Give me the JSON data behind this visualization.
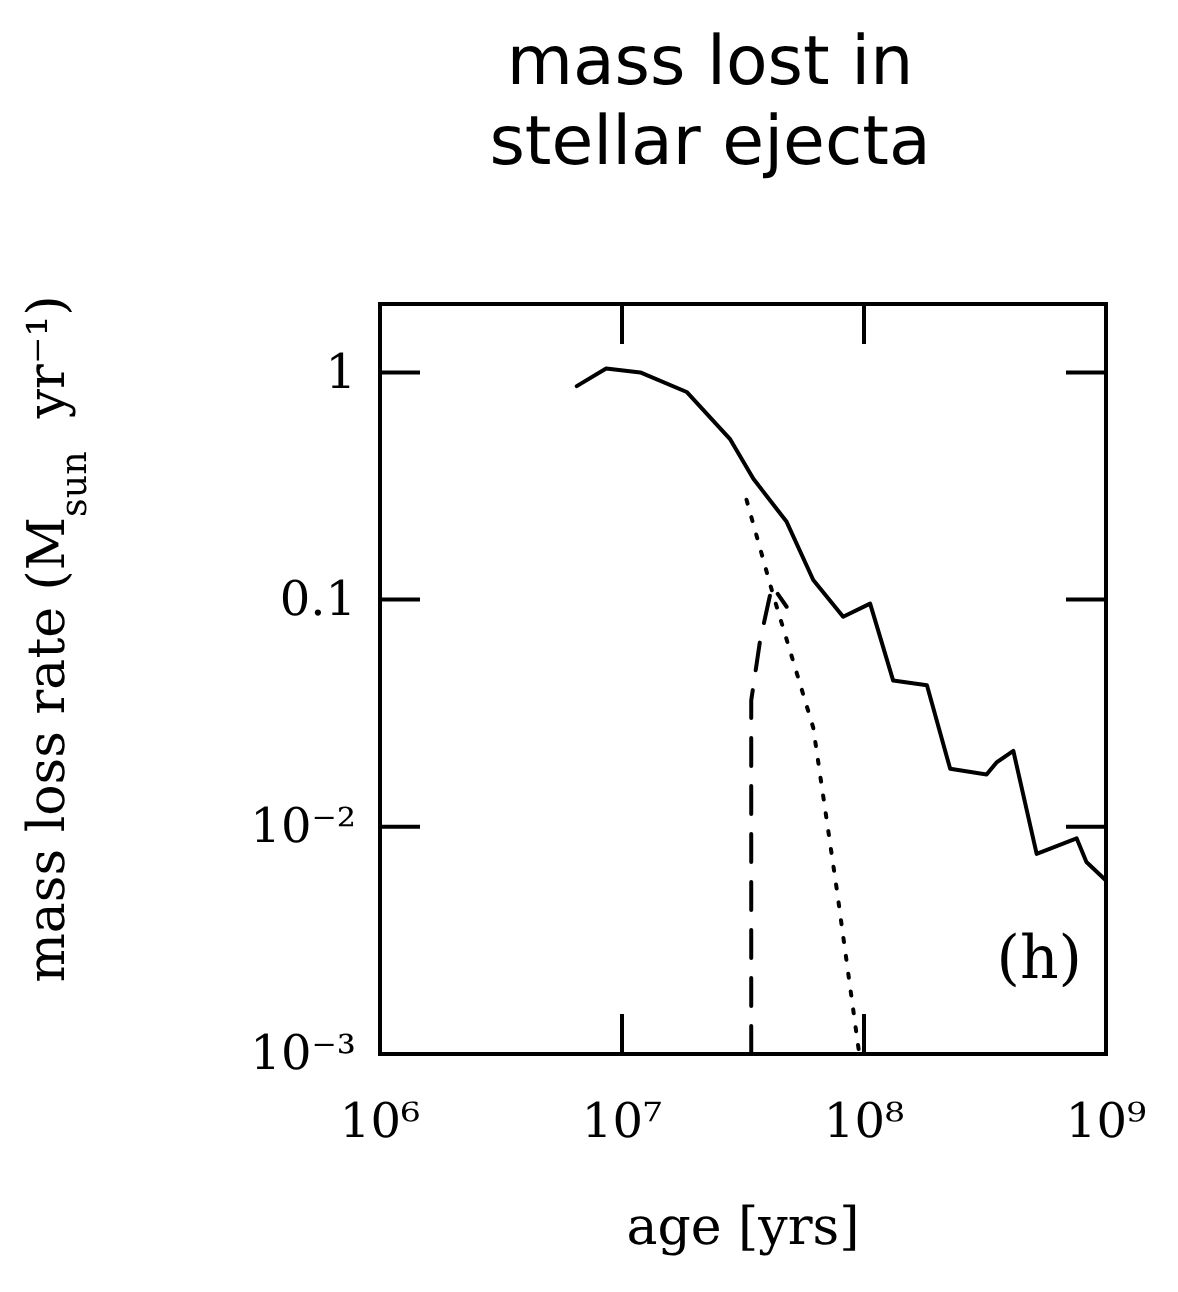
{
  "chart_data": {
    "type": "line",
    "title": "mass lost in\nstellar ejecta",
    "xlabel": "age [yrs]",
    "ylabel": "mass loss rate (M$_{sun}$  yr⁻¹)",
    "log": "xy",
    "grid": false,
    "xlim": [
      1000000,
      1000000000
    ],
    "ylim": [
      0.001,
      2
    ],
    "xticks": [
      {
        "value": 1000000,
        "label": "10⁶"
      },
      {
        "value": 10000000,
        "label": "10⁷"
      },
      {
        "value": 100000000,
        "label": "10⁸"
      },
      {
        "value": 1000000000,
        "label": "10⁹"
      }
    ],
    "yticks": [
      {
        "value": 0.001,
        "label": "10⁻³"
      },
      {
        "value": 0.01,
        "label": "10⁻²"
      },
      0.1,
      1
    ],
    "annotations": [
      "(h)"
    ],
    "series": [
      {
        "color": "#000000",
        "line_style": "solid",
        "x": [
          6500000,
          8600000,
          11900000,
          18500000,
          27900000,
          34900000,
          47900000,
          61700000,
          82000000,
          106000000,
          132000000,
          182000000,
          227000000,
          321000000,
          353000000,
          414000000,
          517000000,
          756000000,
          830000000,
          1000000000
        ],
        "values": [
          0.87,
          1.04,
          1.0,
          0.82,
          0.51,
          0.34,
          0.22,
          0.122,
          0.084,
          0.096,
          0.044,
          0.042,
          0.018,
          0.017,
          0.0192,
          0.0216,
          0.0076,
          0.0089,
          0.007,
          0.0058
        ]
      },
      {
        "color": "#000000",
        "line_style": "dotted",
        "x": [
          32700000,
          42000000,
          61700000,
          77000000,
          95000000
        ],
        "values": [
          0.275,
          0.106,
          0.0273,
          0.0054,
          0.00105
        ]
      },
      {
        "color": "#000000",
        "line_style": "dashed",
        "x": [
          34200000,
          34200000,
          37200000,
          41700000,
          47900000
        ],
        "values": [
          0.001,
          0.036,
          0.066,
          0.115,
          0.093
        ]
      }
    ]
  }
}
